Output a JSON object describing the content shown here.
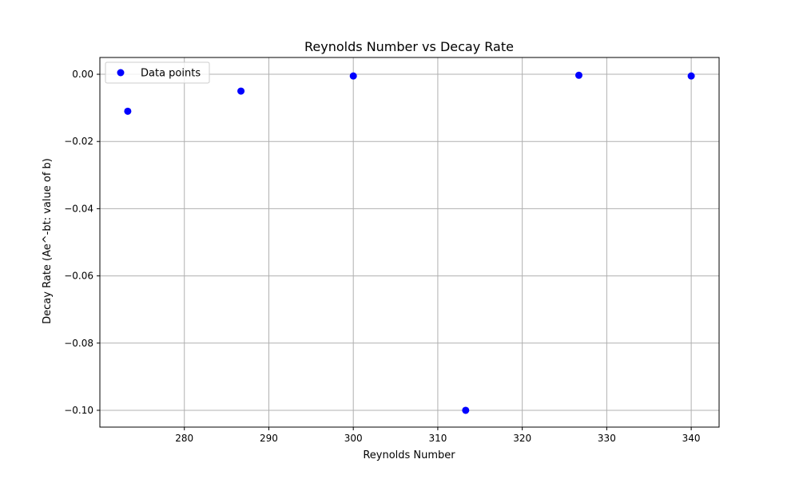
{
  "chart_data": {
    "type": "scatter",
    "title": "Reynolds Number vs Decay Rate",
    "xlabel": "Reynolds Number",
    "ylabel": "Decay Rate (Ae^-bt: value of b)",
    "xlim": [
      270.0,
      343.3
    ],
    "ylim": [
      -0.105,
      0.005
    ],
    "xticks": [
      280,
      290,
      300,
      310,
      320,
      330,
      340
    ],
    "yticks": [
      0.0,
      -0.02,
      -0.04,
      -0.06,
      -0.08,
      -0.1
    ],
    "ytick_labels": [
      "0.00",
      "−0.02",
      "−0.04",
      "−0.06",
      "−0.08",
      "−0.10"
    ],
    "grid": true,
    "legend_position": "top-left",
    "series": [
      {
        "name": "Data points",
        "color": "#0000ff",
        "x": [
          273.3,
          286.7,
          300.0,
          313.3,
          326.7,
          340.0
        ],
        "y": [
          -0.011,
          -0.005,
          -0.0005,
          -0.1,
          -0.0003,
          -0.0005
        ]
      }
    ]
  }
}
